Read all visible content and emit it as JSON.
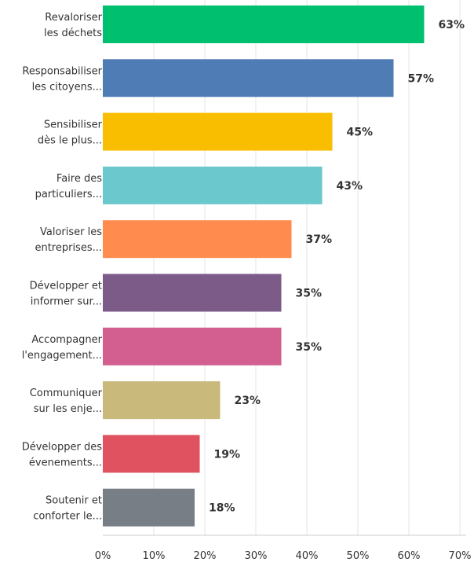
{
  "chart_data": {
    "type": "bar",
    "orientation": "horizontal",
    "categories": [
      [
        "Revaloriser",
        "les déchets"
      ],
      [
        "Responsabiliser",
        "les citoyens..."
      ],
      [
        "Sensibiliser",
        "dès le plus..."
      ],
      [
        "Faire des",
        "particuliers..."
      ],
      [
        "Valoriser les",
        "entreprises..."
      ],
      [
        "Développer et",
        "informer sur..."
      ],
      [
        "Accompagner",
        "l'engagement..."
      ],
      [
        "Communiquer",
        "sur les enje..."
      ],
      [
        "Développer des",
        "évenements..."
      ],
      [
        "Soutenir et",
        "conforter le..."
      ]
    ],
    "values": [
      63,
      57,
      45,
      43,
      37,
      35,
      35,
      23,
      19,
      18
    ],
    "value_labels": [
      "63%",
      "57%",
      "45%",
      "43%",
      "37%",
      "35%",
      "35%",
      "23%",
      "19%",
      "18%"
    ],
    "colors": [
      "#00bf6f",
      "#507cb6",
      "#f9be00",
      "#6bc8cd",
      "#ff8b4f",
      "#7d5b89",
      "#d25f90",
      "#c9b97b",
      "#e05260",
      "#777e85"
    ],
    "xlim": [
      0,
      70
    ],
    "x_ticks": [
      0,
      10,
      20,
      30,
      40,
      50,
      60,
      70
    ],
    "x_tick_labels": [
      "0%",
      "10%",
      "20%",
      "30%",
      "40%",
      "50%",
      "60%",
      "70%"
    ],
    "grid": true,
    "title": "",
    "xlabel": "",
    "ylabel": ""
  }
}
